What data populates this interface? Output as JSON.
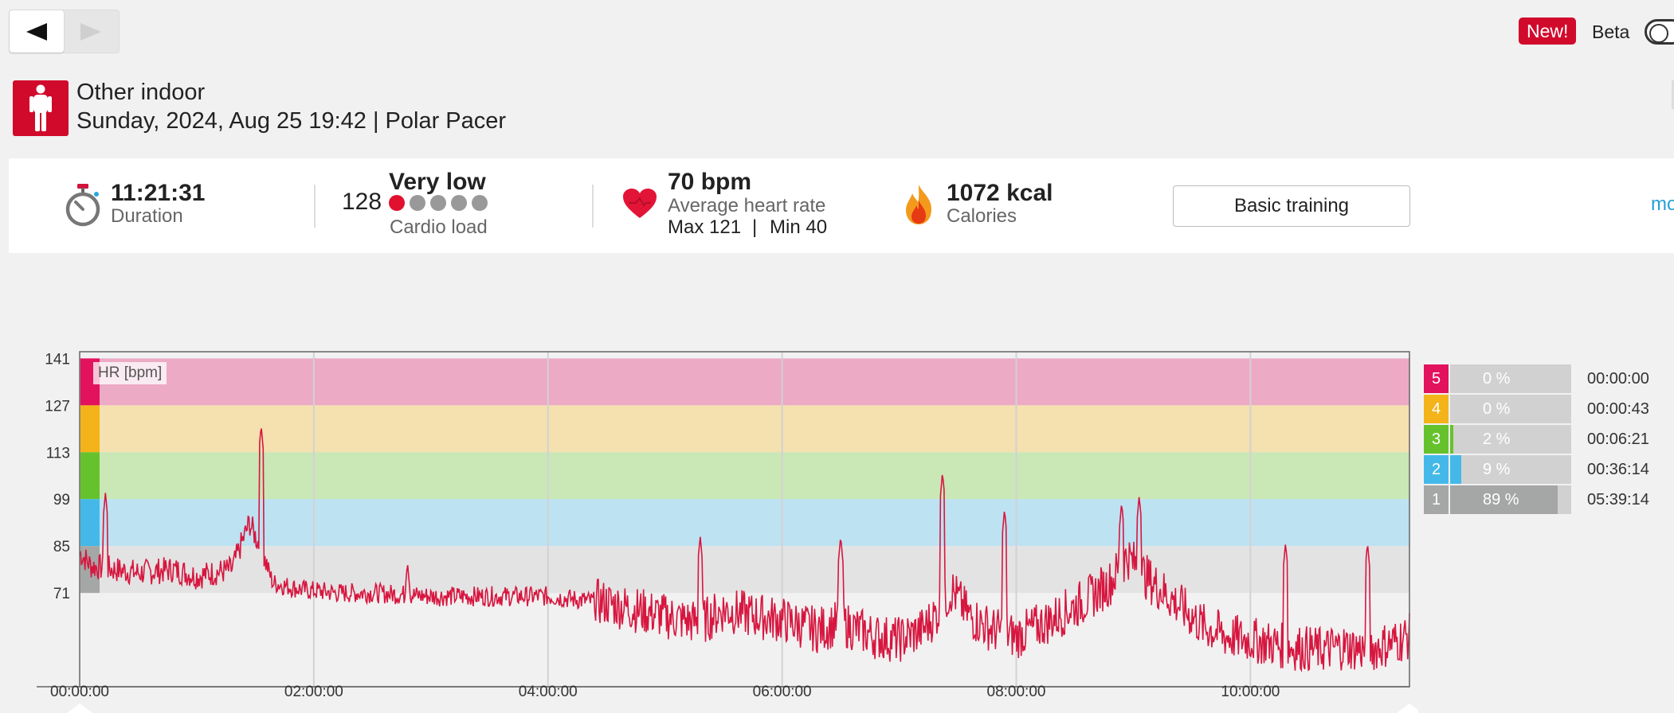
{
  "nav": {
    "back_icon": "triangle-left",
    "forward_icon": "triangle-right"
  },
  "header": {
    "new_badge": "New!",
    "beta_label": "Beta"
  },
  "activity": {
    "sport_icon": "person-icon",
    "sport": "Other indoor",
    "subtitle": "Sunday, 2024, Aug 25 19:42 | Polar Pacer"
  },
  "summary": {
    "duration": {
      "value": "11:21:31",
      "label": "Duration"
    },
    "cardio": {
      "score": "128",
      "level": "Very low",
      "label": "Cardio load",
      "dots_filled": 1,
      "dots_total": 5
    },
    "heart": {
      "value": "70 bpm",
      "label": "Average heart rate",
      "max": "Max 121",
      "sep": "|",
      "min": "Min 40"
    },
    "calories": {
      "value": "1072 kcal",
      "label": "Calories"
    },
    "training_button": "Basic training",
    "more_link": "mo"
  },
  "chart_data": {
    "type": "line",
    "legend": "HR [bpm]",
    "ylim": [
      43,
      143
    ],
    "y_ticks": [
      "141",
      "127",
      "113",
      "99",
      "85",
      "71"
    ],
    "x_ticks": [
      "00:00:00",
      "02:00:00",
      "04:00:00",
      "06:00:00",
      "08:00:00",
      "10:00:00"
    ],
    "x_range_seconds": [
      0,
      40891
    ],
    "zone_bands": [
      {
        "zone": "5",
        "from": 127,
        "to": 141,
        "color": "#ecaac5"
      },
      {
        "zone": "4",
        "from": 113,
        "to": 127,
        "color": "#f5e0b0"
      },
      {
        "zone": "3",
        "from": 99,
        "to": 113,
        "color": "#cae7b6"
      },
      {
        "zone": "2",
        "from": 85,
        "to": 99,
        "color": "#bde2f2"
      },
      {
        "zone": "1",
        "from": 71,
        "to": 85,
        "color": "#e3e3e3"
      }
    ],
    "series": [
      {
        "color": "#d7163f",
        "x_hours": [
          0,
          0.1,
          0.3,
          0.5,
          0.8,
          1.0,
          1.3,
          1.45,
          1.55,
          1.65,
          1.9,
          2.2,
          2.5,
          3.0,
          3.5,
          4.0,
          4.5,
          5.0,
          5.3,
          5.5,
          5.8,
          6.0,
          6.3,
          6.5,
          6.8,
          7.0,
          7.2,
          7.35,
          7.45,
          7.6,
          7.8,
          8.0,
          8.3,
          8.6,
          8.8,
          8.95,
          9.1,
          9.3,
          9.6,
          9.8,
          10.0,
          10.3,
          10.6,
          10.8,
          11.0,
          11.2,
          11.35
        ],
        "y": [
          83,
          79,
          78,
          77,
          78,
          76,
          78,
          92,
          84,
          74,
          72,
          71,
          71,
          70,
          70,
          70,
          68,
          64,
          62,
          66,
          64,
          63,
          60,
          62,
          58,
          57,
          60,
          66,
          72,
          64,
          60,
          58,
          63,
          69,
          74,
          82,
          76,
          70,
          61,
          58,
          57,
          55,
          54,
          55,
          54,
          56,
          58
        ],
        "peaks": [
          [
            0.22,
            101
          ],
          [
            1.55,
            121
          ],
          [
            2.8,
            80
          ],
          [
            5.3,
            88
          ],
          [
            6.5,
            88
          ],
          [
            7.37,
            107
          ],
          [
            7.9,
            96
          ],
          [
            8.9,
            98
          ],
          [
            9.05,
            100
          ],
          [
            10.3,
            86
          ],
          [
            11.0,
            86
          ]
        ]
      }
    ],
    "grid": true
  },
  "zones": [
    {
      "num": "5",
      "pct": "0 %",
      "time": "00:00:00",
      "fraction": 0.0,
      "color": "#e2125d"
    },
    {
      "num": "4",
      "pct": "0 %",
      "time": "00:00:43",
      "fraction": 0.0,
      "color": "#f3b319"
    },
    {
      "num": "3",
      "pct": "2 %",
      "time": "00:06:21",
      "fraction": 0.02,
      "color": "#66c22c"
    },
    {
      "num": "2",
      "pct": "9 %",
      "time": "00:36:14",
      "fraction": 0.09,
      "color": "#44b9e9"
    },
    {
      "num": "1",
      "pct": "89 %",
      "time": "05:39:14",
      "fraction": 0.89,
      "color": "#a4a7a5"
    }
  ]
}
